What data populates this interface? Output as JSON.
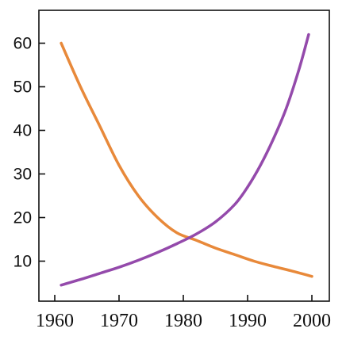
{
  "chart_data": {
    "type": "line",
    "title": "",
    "xlabel": "",
    "ylabel": "",
    "xlim": [
      1960,
      2004
    ],
    "ylim": [
      0,
      65
    ],
    "x_ticks": [
      1960,
      1970,
      1980,
      1990,
      2000
    ],
    "x_tick_labels": [
      "1960",
      "1970",
      "1980",
      "1990",
      "2000"
    ],
    "y_ticks": [
      10,
      20,
      30,
      40,
      50,
      60
    ],
    "y_tick_labels": [
      "10",
      "20",
      "30",
      "40",
      "50",
      "60"
    ],
    "grid": false,
    "legend": "none",
    "series": [
      {
        "color": "#e8893a",
        "x": [
          1961,
          1964,
          1967,
          1970,
          1973,
          1976,
          1979,
          1982,
          1985,
          1988,
          1991,
          1994,
          1997,
          2000
        ],
        "y": [
          60,
          50,
          41,
          32,
          25,
          20,
          16.5,
          14.8,
          13,
          11.5,
          10,
          8.8,
          7.7,
          6.5
        ]
      },
      {
        "color": "#944aab",
        "x": [
          1961,
          1964,
          1967,
          1970,
          1973,
          1976,
          1979,
          1982,
          1985,
          1988,
          1990,
          1992,
          1994,
          1996,
          1998,
          1999.5
        ],
        "y": [
          4.5,
          5.8,
          7.2,
          8.6,
          10.2,
          12,
          14,
          16.2,
          19,
          23,
          27,
          32,
          38,
          45,
          54,
          62
        ]
      }
    ]
  }
}
